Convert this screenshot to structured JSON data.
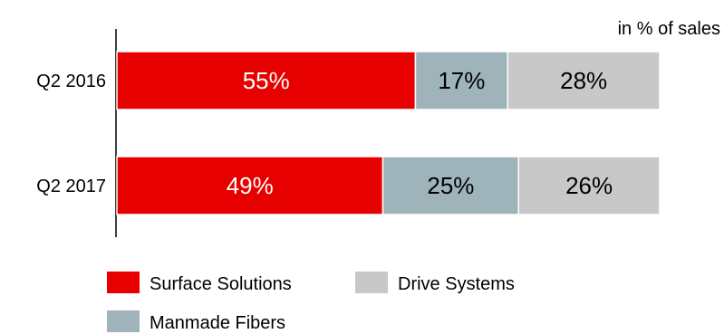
{
  "chart_data": {
    "type": "bar",
    "orientation": "horizontal",
    "stacked": true,
    "unit_label": "in % of sales",
    "categories": [
      "Q2 2016",
      "Q2 2017"
    ],
    "series": [
      {
        "name": "Surface Solutions",
        "color": "#e60000",
        "label_color": "#ffffff",
        "values": [
          55,
          49
        ],
        "labels": [
          "55%",
          "49%"
        ]
      },
      {
        "name": "Manmade Fibers",
        "color": "#9fb3bb",
        "label_color": "#000000",
        "values": [
          17,
          25
        ],
        "labels": [
          "17%",
          "25%"
        ]
      },
      {
        "name": "Drive Systems",
        "color": "#c8c8c8",
        "label_color": "#000000",
        "values": [
          28,
          26
        ],
        "labels": [
          "28%",
          "26%"
        ]
      }
    ],
    "xlim": [
      0,
      100
    ],
    "grid": false,
    "legend_position": "bottom"
  }
}
